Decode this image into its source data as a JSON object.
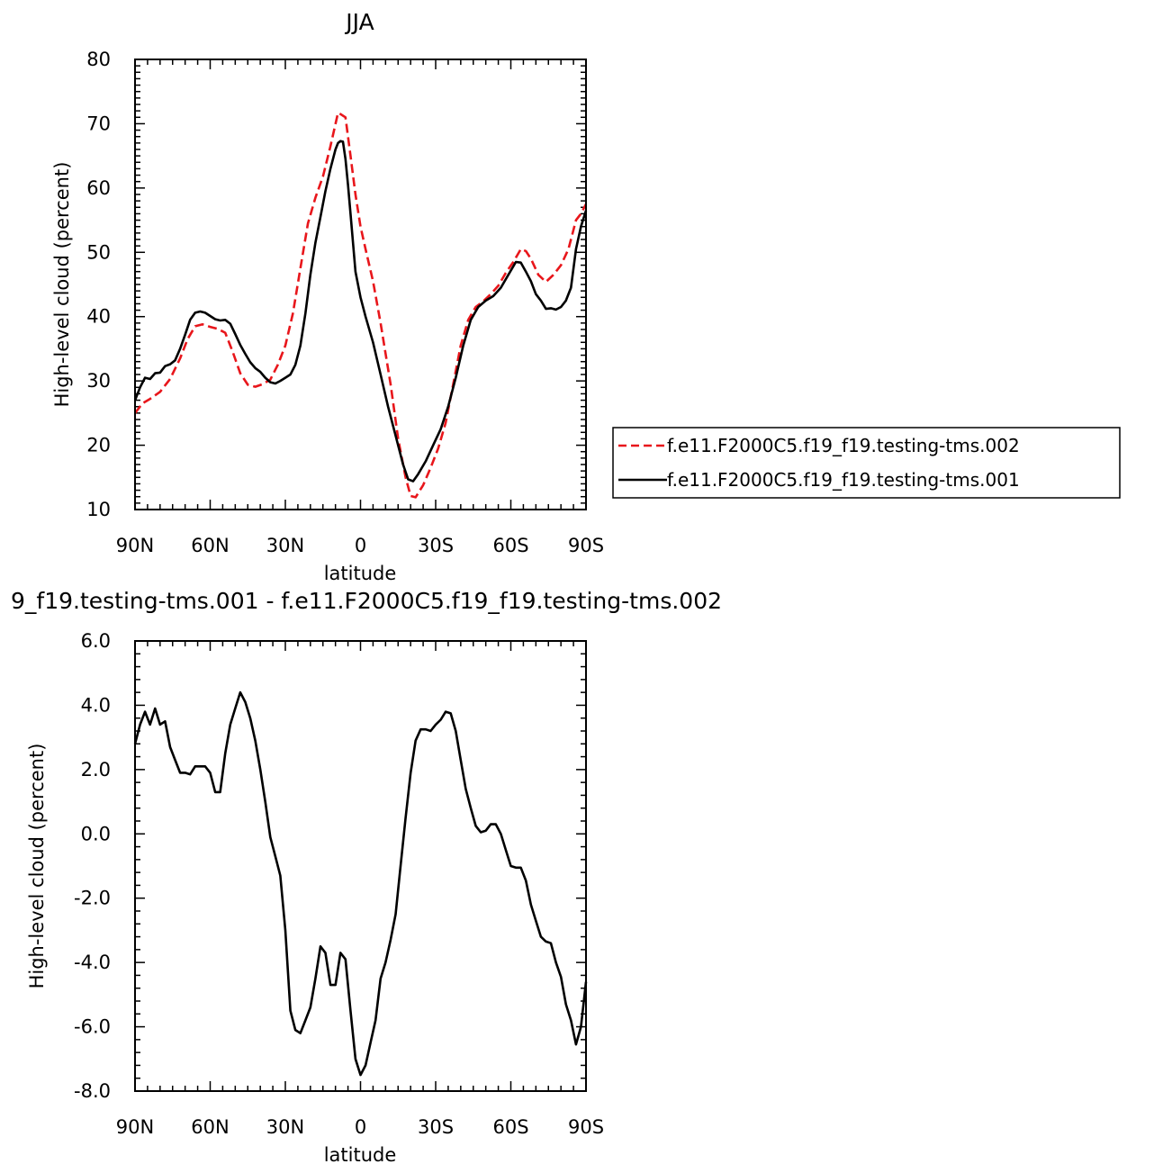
{
  "chart_data": [
    {
      "type": "line",
      "title": "JJA",
      "xlabel": "latitude",
      "ylabel": "High-level cloud (percent)",
      "xlim": [
        -90,
        90
      ],
      "ylim": [
        10,
        80
      ],
      "x_ticks": [
        {
          "value": -90,
          "label": "90N"
        },
        {
          "value": -60,
          "label": "60N"
        },
        {
          "value": -30,
          "label": "30N"
        },
        {
          "value": 0,
          "label": "0"
        },
        {
          "value": 30,
          "label": "30S"
        },
        {
          "value": 60,
          "label": "60S"
        },
        {
          "value": 90,
          "label": "90S"
        }
      ],
      "y_ticks": [
        {
          "value": 10,
          "label": "10"
        },
        {
          "value": 20,
          "label": "20"
        },
        {
          "value": 30,
          "label": "30"
        },
        {
          "value": 40,
          "label": "40"
        },
        {
          "value": 50,
          "label": "50"
        },
        {
          "value": 60,
          "label": "60"
        },
        {
          "value": 70,
          "label": "70"
        },
        {
          "value": 80,
          "label": "80"
        }
      ],
      "legend_position": "outside-right",
      "series": [
        {
          "name": "f.e11.F2000C5.f19_f19.testing-tms.002",
          "color": "#e8161b",
          "dash": "dashed",
          "x": [
            -90,
            -87,
            -84,
            -80,
            -76,
            -72,
            -69,
            -66,
            -63,
            -60,
            -57,
            -54,
            -51,
            -48,
            -45,
            -42,
            -39,
            -36,
            -33,
            -30,
            -27,
            -24,
            -21,
            -18,
            -15,
            -12,
            -9,
            -8,
            -6,
            -4,
            -2,
            0,
            2,
            5,
            8,
            12,
            15,
            18,
            20,
            22,
            25,
            28,
            31,
            34,
            37,
            40,
            43,
            46,
            49,
            52,
            55,
            58,
            61,
            64,
            66,
            68,
            71,
            74,
            77,
            80,
            83,
            86,
            88,
            90
          ],
          "y": [
            25,
            26.5,
            27.2,
            28.3,
            30.3,
            33.5,
            36.5,
            38.5,
            38.8,
            38.4,
            38.1,
            37.5,
            34.5,
            31.2,
            29.4,
            29.1,
            29.5,
            30.2,
            32.5,
            35.5,
            40.5,
            47.5,
            54.5,
            58.5,
            61.8,
            66.5,
            71.7,
            71.5,
            71,
            65,
            59,
            54,
            50.5,
            45.5,
            39,
            29.5,
            21,
            15,
            12.1,
            11.9,
            13.8,
            16.5,
            19.5,
            23.5,
            29.5,
            35.5,
            39.5,
            41.5,
            42.4,
            43.5,
            44.8,
            46.8,
            48.5,
            50.5,
            50.2,
            49,
            46.5,
            45.4,
            46.5,
            48,
            50.5,
            55,
            56,
            57.5
          ]
        },
        {
          "name": "f.e11.F2000C5.f19_f19.testing-tms.001",
          "color": "#000000",
          "dash": "solid",
          "x": [
            -90,
            -88,
            -86,
            -84,
            -82,
            -80,
            -78,
            -76,
            -74,
            -72,
            -70,
            -68,
            -66,
            -64,
            -62,
            -60,
            -58,
            -56,
            -54,
            -52,
            -50,
            -48,
            -46,
            -44,
            -42,
            -40,
            -38,
            -36,
            -34,
            -32,
            -30,
            -28,
            -26,
            -24,
            -22,
            -20,
            -18,
            -16,
            -14,
            -12,
            -10,
            -9,
            -8,
            -7,
            -6,
            -5,
            -4,
            -2,
            0,
            2,
            5,
            8,
            11,
            14,
            17,
            19,
            21,
            23,
            26,
            29,
            32,
            35,
            38,
            41,
            44,
            47,
            50,
            53,
            56,
            59,
            62,
            64,
            66,
            68,
            70,
            72,
            74,
            76,
            78,
            80,
            82,
            84,
            86,
            88,
            90
          ],
          "y": [
            27,
            29,
            30.5,
            30.3,
            31.2,
            31.3,
            32.3,
            32.6,
            33.2,
            35,
            37.2,
            39.5,
            40.6,
            40.8,
            40.6,
            40.1,
            39.6,
            39.4,
            39.5,
            38.9,
            37.3,
            35.6,
            34.2,
            32.9,
            32,
            31.4,
            30.5,
            29.8,
            29.6,
            30,
            30.5,
            31,
            32.5,
            35.5,
            40.5,
            46.5,
            51.5,
            55.5,
            59.5,
            63,
            66,
            67,
            67.3,
            67.2,
            64.5,
            60.5,
            56,
            47,
            43,
            40,
            36,
            31,
            26,
            21.5,
            17,
            14.7,
            14.4,
            15.5,
            17.5,
            20,
            22.5,
            26,
            30.5,
            35.5,
            39.5,
            41.5,
            42.5,
            43.2,
            44.5,
            46.5,
            48.5,
            48.4,
            47,
            45.5,
            43.5,
            42.5,
            41.2,
            41.3,
            41.1,
            41.5,
            42.5,
            44.5,
            50.5,
            54,
            56.5
          ]
        }
      ]
    },
    {
      "type": "line",
      "title": "9_f19.testing-tms.001 - f.e11.F2000C5.f19_f19.testing-tms.002",
      "xlabel": "latitude",
      "ylabel": "High-level cloud (percent)",
      "xlim": [
        -90,
        90
      ],
      "ylim": [
        -8,
        6
      ],
      "x_ticks": [
        {
          "value": -90,
          "label": "90N"
        },
        {
          "value": -60,
          "label": "60N"
        },
        {
          "value": -30,
          "label": "30N"
        },
        {
          "value": 0,
          "label": "0"
        },
        {
          "value": 30,
          "label": "30S"
        },
        {
          "value": 60,
          "label": "60S"
        },
        {
          "value": 90,
          "label": "90S"
        }
      ],
      "y_ticks": [
        {
          "value": -8,
          "label": "-8.0"
        },
        {
          "value": -6,
          "label": "-6.0"
        },
        {
          "value": -4,
          "label": "-4.0"
        },
        {
          "value": -2,
          "label": "-2.0"
        },
        {
          "value": 0,
          "label": "0.0"
        },
        {
          "value": 2,
          "label": "2.0"
        },
        {
          "value": 4,
          "label": "4.0"
        },
        {
          "value": 6,
          "label": "6.0"
        }
      ],
      "series": [
        {
          "name": "",
          "color": "#000000",
          "dash": "solid",
          "x": [
            -90,
            -88,
            -86,
            -84,
            -82,
            -80,
            -78,
            -76,
            -74,
            -72,
            -70,
            -68,
            -66,
            -64,
            -62,
            -60,
            -58,
            -56,
            -54,
            -52,
            -50,
            -48,
            -46,
            -44,
            -42,
            -40,
            -38,
            -36,
            -34,
            -32,
            -30,
            -28,
            -26,
            -24,
            -22,
            -20,
            -18,
            -16,
            -14,
            -12,
            -10,
            -8,
            -6,
            -4,
            -2,
            0,
            2,
            4,
            6,
            8,
            10,
            12,
            14,
            16,
            18,
            20,
            22,
            24,
            26,
            28,
            30,
            32,
            34,
            36,
            38,
            40,
            42,
            44,
            46,
            48,
            50,
            52,
            54,
            56,
            58,
            60,
            62,
            64,
            66,
            68,
            70,
            72,
            74,
            76,
            78,
            80,
            82,
            84,
            86,
            88,
            90
          ],
          "y": [
            2.8,
            3.4,
            3.8,
            3.4,
            3.9,
            3.4,
            3.5,
            2.7,
            2.3,
            1.9,
            1.9,
            1.85,
            2.1,
            2.1,
            2.1,
            1.9,
            1.3,
            1.3,
            2.5,
            3.4,
            3.9,
            4.4,
            4.1,
            3.6,
            2.9,
            2.0,
            1.0,
            -0.1,
            -0.7,
            -1.3,
            -3.0,
            -5.5,
            -6.1,
            -6.2,
            -5.8,
            -5.4,
            -4.5,
            -3.5,
            -3.7,
            -4.7,
            -4.7,
            -3.7,
            -3.9,
            -5.5,
            -7.0,
            -7.5,
            -7.2,
            -6.5,
            -5.8,
            -4.5,
            -4.0,
            -3.3,
            -2.5,
            -1.0,
            0.5,
            1.9,
            2.9,
            3.25,
            3.25,
            3.2,
            3.4,
            3.55,
            3.8,
            3.75,
            3.2,
            2.3,
            1.4,
            0.8,
            0.25,
            0.05,
            0.1,
            0.3,
            0.3,
            0.0,
            -0.5,
            -1.0,
            -1.05,
            -1.05,
            -1.45,
            -2.2,
            -2.7,
            -3.2,
            -3.35,
            -3.4,
            -4.0,
            -4.45,
            -5.3,
            -5.8,
            -6.55,
            -6.0,
            -4.6
          ]
        }
      ]
    }
  ]
}
